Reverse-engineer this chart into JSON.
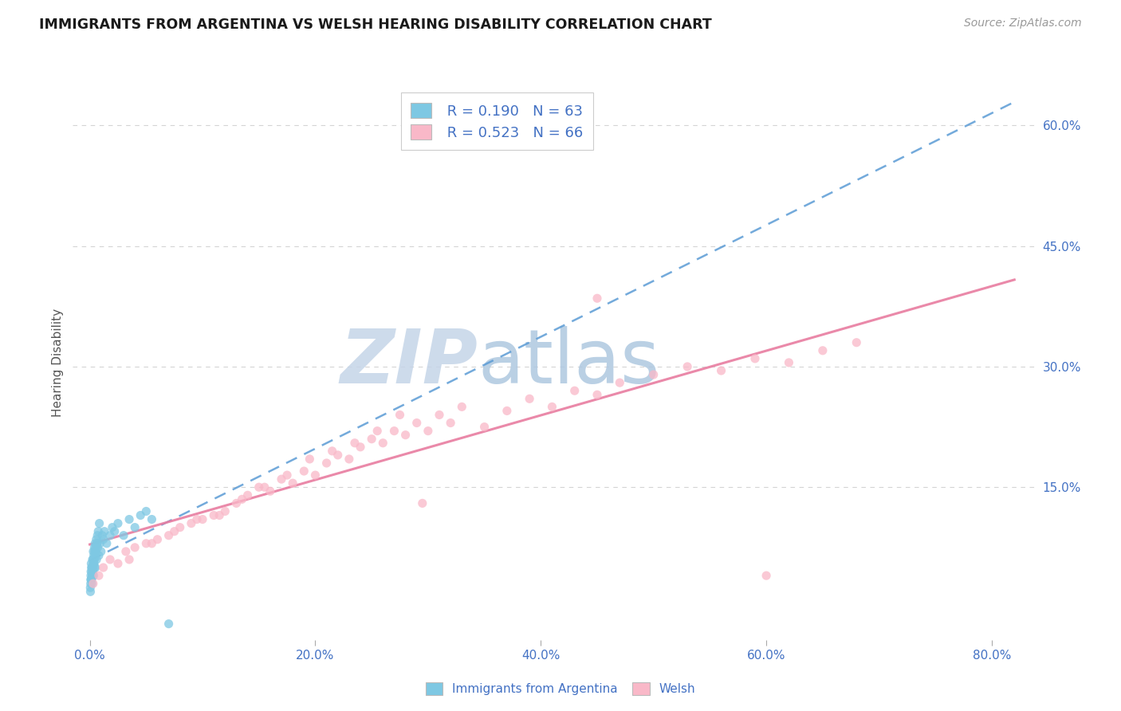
{
  "title": "IMMIGRANTS FROM ARGENTINA VS WELSH HEARING DISABILITY CORRELATION CHART",
  "source": "Source: ZipAtlas.com",
  "ylabel": "Hearing Disability",
  "x_tick_labels": [
    "0.0%",
    "20.0%",
    "40.0%",
    "60.0%",
    "80.0%"
  ],
  "x_tick_values": [
    0.0,
    20.0,
    40.0,
    60.0,
    80.0
  ],
  "y_tick_labels": [
    "15.0%",
    "30.0%",
    "45.0%",
    "60.0%"
  ],
  "y_tick_values": [
    15.0,
    30.0,
    45.0,
    60.0
  ],
  "xlim": [
    -1.5,
    84
  ],
  "ylim": [
    -4,
    65
  ],
  "legend_label1": "Immigrants from Argentina",
  "legend_label2": "Welsh",
  "R1": 0.19,
  "N1": 63,
  "R2": 0.523,
  "N2": 66,
  "color_blue": "#7ec8e3",
  "color_pink": "#f9b8c8",
  "color_blue_line": "#5b9bd5",
  "color_pink_line": "#e87ca0",
  "color_text_blue": "#4472c4",
  "color_source": "#999999",
  "color_title": "#1a1a1a",
  "background_color": "#ffffff",
  "watermark_color_zip": "#c8d8ec",
  "watermark_color_atlas": "#b8cce4",
  "grid_color": "#d0d0d0",
  "blue_scatter_x": [
    0.05,
    0.08,
    0.1,
    0.12,
    0.15,
    0.18,
    0.2,
    0.22,
    0.25,
    0.28,
    0.3,
    0.32,
    0.35,
    0.38,
    0.4,
    0.42,
    0.45,
    0.48,
    0.5,
    0.55,
    0.6,
    0.65,
    0.7,
    0.8,
    0.9,
    1.0,
    1.1,
    1.2,
    1.3,
    1.5,
    1.8,
    2.0,
    2.2,
    2.5,
    3.0,
    3.5,
    4.0,
    4.5,
    5.0,
    5.5,
    0.06,
    0.09,
    0.11,
    0.13,
    0.16,
    0.19,
    0.21,
    0.24,
    0.27,
    0.31,
    0.33,
    0.36,
    0.39,
    0.41,
    0.44,
    0.47,
    0.52,
    0.58,
    0.63,
    0.68,
    0.75,
    0.85,
    7.0
  ],
  "blue_scatter_y": [
    2.5,
    3.0,
    4.0,
    3.5,
    5.0,
    4.5,
    3.0,
    4.0,
    5.0,
    4.5,
    6.0,
    5.5,
    4.0,
    5.5,
    6.0,
    5.0,
    7.0,
    6.5,
    5.0,
    7.0,
    6.0,
    8.0,
    7.5,
    6.5,
    8.0,
    7.0,
    9.0,
    8.5,
    9.5,
    8.0,
    9.0,
    10.0,
    9.5,
    10.5,
    9.0,
    11.0,
    10.0,
    11.5,
    12.0,
    11.0,
    2.0,
    3.5,
    4.5,
    5.5,
    3.5,
    5.0,
    4.0,
    6.0,
    5.0,
    7.0,
    5.5,
    6.5,
    6.0,
    7.5,
    7.0,
    8.0,
    7.5,
    8.5,
    8.0,
    9.0,
    9.5,
    10.5,
    -2.0
  ],
  "pink_scatter_x": [
    0.3,
    0.8,
    1.2,
    1.8,
    2.5,
    3.2,
    4.0,
    5.0,
    6.0,
    7.0,
    8.0,
    9.0,
    10.0,
    11.0,
    12.0,
    13.0,
    14.0,
    15.0,
    16.0,
    17.0,
    18.0,
    19.0,
    20.0,
    21.0,
    22.0,
    23.0,
    24.0,
    25.0,
    26.0,
    27.0,
    28.0,
    29.0,
    30.0,
    31.0,
    32.0,
    33.0,
    35.0,
    37.0,
    39.0,
    41.0,
    43.0,
    45.0,
    47.0,
    50.0,
    53.0,
    56.0,
    59.0,
    62.0,
    65.0,
    68.0,
    3.5,
    5.5,
    7.5,
    9.5,
    11.5,
    13.5,
    15.5,
    17.5,
    19.5,
    21.5,
    23.5,
    25.5,
    27.5,
    29.5,
    45.0,
    60.0
  ],
  "pink_scatter_y": [
    3.0,
    4.0,
    5.0,
    6.0,
    5.5,
    7.0,
    7.5,
    8.0,
    8.5,
    9.0,
    10.0,
    10.5,
    11.0,
    11.5,
    12.0,
    13.0,
    14.0,
    15.0,
    14.5,
    16.0,
    15.5,
    17.0,
    16.5,
    18.0,
    19.0,
    18.5,
    20.0,
    21.0,
    20.5,
    22.0,
    21.5,
    23.0,
    22.0,
    24.0,
    23.0,
    25.0,
    22.5,
    24.5,
    26.0,
    25.0,
    27.0,
    26.5,
    28.0,
    29.0,
    30.0,
    29.5,
    31.0,
    30.5,
    32.0,
    33.0,
    6.0,
    8.0,
    9.5,
    11.0,
    11.5,
    13.5,
    15.0,
    16.5,
    18.5,
    19.5,
    20.5,
    22.0,
    24.0,
    13.0,
    38.5,
    4.0
  ]
}
